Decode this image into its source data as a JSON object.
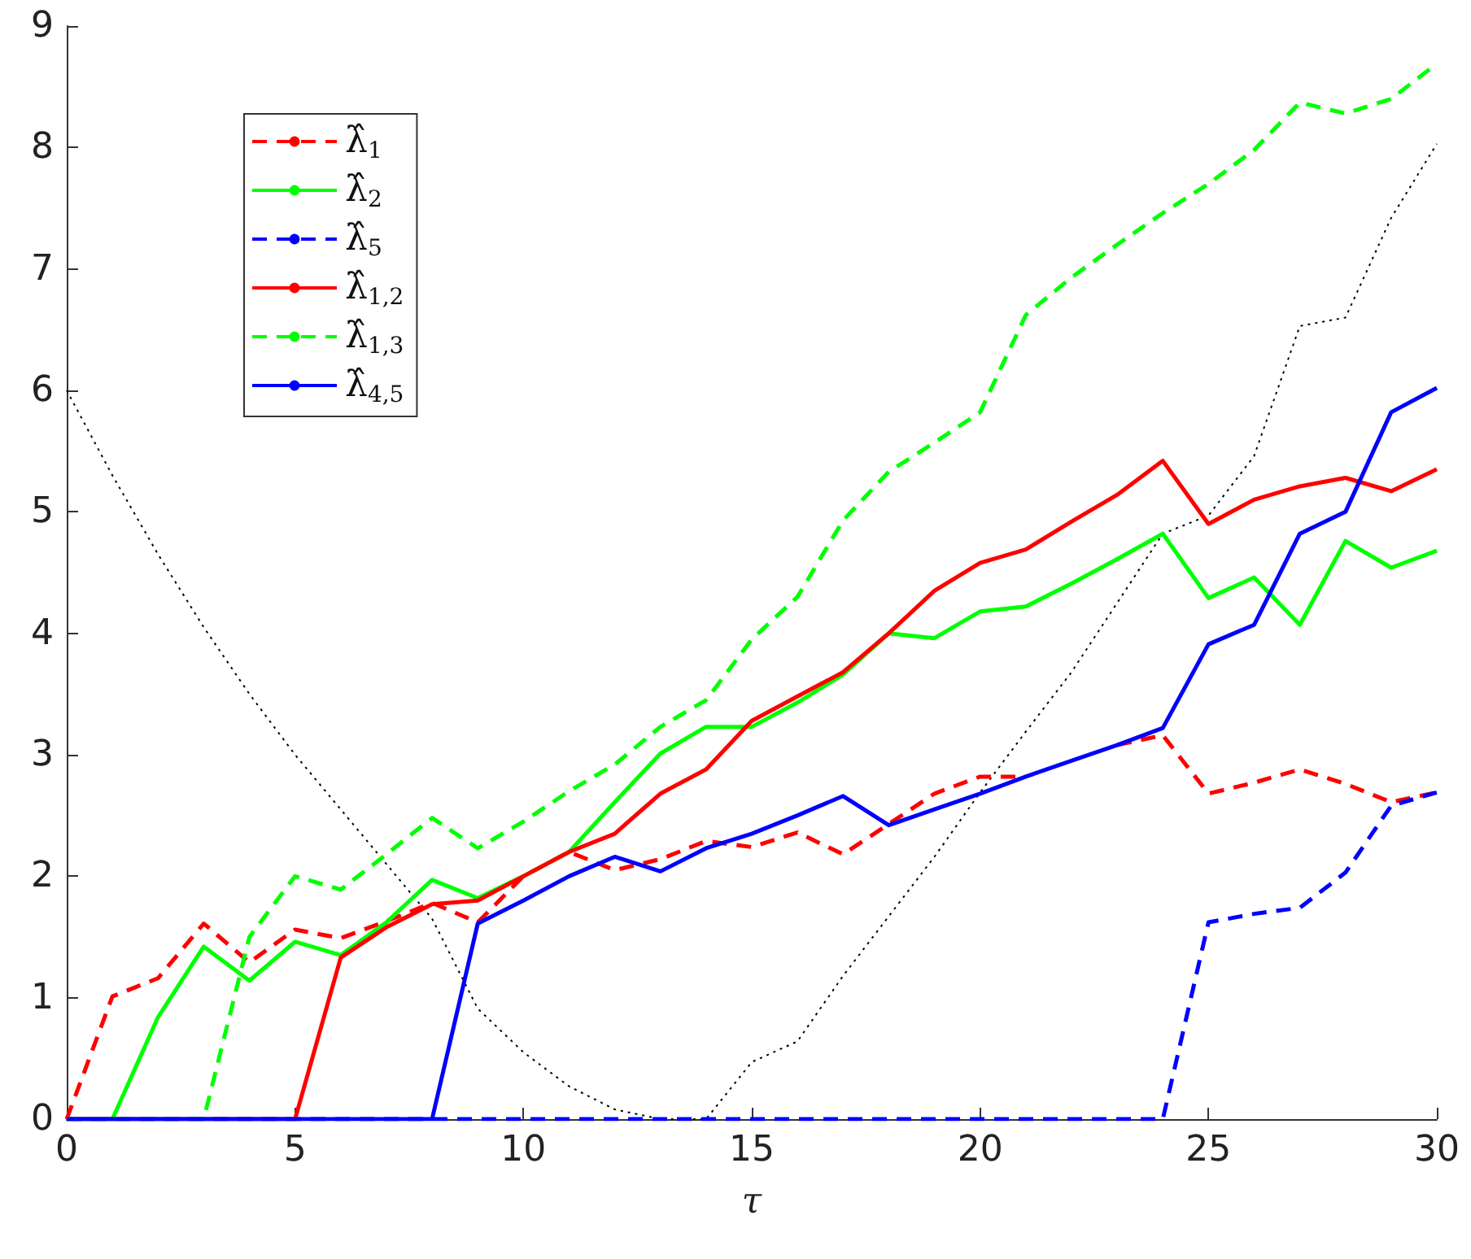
{
  "chart_data": {
    "type": "line",
    "xlabel": "τ",
    "xlim": [
      0,
      30
    ],
    "xticks": [
      0,
      5,
      10,
      15,
      20,
      25,
      30
    ],
    "ylim": [
      0,
      9
    ],
    "yticks": [
      0,
      1,
      2,
      3,
      4,
      5,
      6,
      7,
      8,
      9
    ],
    "grid": false,
    "legend": "top left",
    "marker": "none",
    "x": [
      0,
      1,
      2,
      3,
      4,
      5,
      6,
      7,
      8,
      9,
      10,
      11,
      12,
      13,
      14,
      15,
      16,
      17,
      18,
      19,
      20,
      21,
      22,
      23,
      24,
      25,
      26,
      27,
      28,
      29,
      30
    ],
    "series": [
      {
        "name": "λ̂$_{1}$",
        "color": "#ff0000",
        "line_style": "dashed",
        "values": [
          0,
          1.01,
          1.16,
          1.61,
          1.29,
          1.56,
          1.49,
          1.63,
          1.78,
          1.62,
          2.0,
          2.2,
          2.05,
          2.14,
          2.29,
          2.24,
          2.36,
          2.18,
          2.43,
          2.68,
          2.82,
          2.82,
          null,
          3.08,
          3.16,
          2.68,
          2.77,
          2.88,
          2.76,
          2.61,
          2.69
        ]
      },
      {
        "name": "λ̂$_{2}$",
        "color": "#00ff00",
        "line_style": "solid",
        "values": [
          0,
          0,
          0.84,
          1.42,
          1.14,
          1.46,
          1.35,
          1.62,
          1.97,
          1.82,
          2.0,
          2.2,
          2.61,
          3.01,
          3.23,
          3.23,
          3.43,
          3.66,
          4.0,
          3.96,
          4.18,
          4.22,
          4.41,
          4.61,
          4.82,
          4.29,
          4.46,
          4.07,
          4.76,
          4.54,
          4.68
        ]
      },
      {
        "name": "λ̂$_{5}$",
        "color": "#0000ff",
        "line_style": "dashed",
        "values": [
          0,
          0,
          0,
          0,
          0,
          0,
          0,
          0,
          0,
          0,
          0,
          0,
          0,
          0,
          0,
          0,
          0,
          0,
          0,
          0,
          0,
          0,
          0,
          0,
          0,
          1.62,
          1.69,
          1.74,
          2.03,
          2.58,
          2.69
        ]
      },
      {
        "name": "λ̂$_{1,2}$",
        "color": "#ff0000",
        "line_style": "solid",
        "values": [
          0,
          0,
          0,
          0,
          0,
          0,
          1.33,
          1.58,
          1.77,
          1.8,
          2.0,
          2.2,
          2.35,
          2.68,
          2.88,
          3.28,
          3.48,
          3.68,
          4.0,
          4.35,
          4.58,
          4.69,
          4.92,
          5.14,
          5.42,
          4.9,
          5.1,
          5.21,
          5.28,
          5.17,
          5.35
        ]
      },
      {
        "name": "λ̂$_{1,3}$",
        "color": "#00ff00",
        "line_style": "dashed",
        "values": [
          0,
          0,
          0,
          0,
          1.5,
          2.0,
          1.89,
          2.18,
          2.48,
          2.23,
          2.45,
          2.7,
          2.92,
          3.23,
          3.45,
          3.95,
          4.3,
          4.93,
          5.33,
          5.57,
          5.82,
          6.62,
          6.93,
          7.2,
          7.46,
          7.7,
          7.98,
          8.37,
          8.28,
          8.4,
          8.69
        ]
      },
      {
        "name": "λ̂$_{4,5}$",
        "color": "#0000ff",
        "line_style": "solid",
        "values": [
          0,
          0,
          0,
          0,
          0,
          0,
          0,
          0,
          0,
          1.61,
          1.8,
          2.0,
          2.16,
          2.04,
          2.23,
          2.35,
          2.5,
          2.66,
          2.42,
          2.55,
          2.68,
          2.82,
          2.95,
          3.08,
          3.22,
          3.91,
          4.07,
          4.82,
          5.0,
          5.82,
          6.02
        ]
      },
      {
        "color": "#000000",
        "line_style": "dotted",
        "values": [
          6.0,
          5.3,
          4.65,
          4.05,
          3.5,
          3.0,
          2.55,
          2.1,
          1.65,
          0.91,
          0.55,
          0.27,
          0.08,
          0,
          0,
          0.47,
          0.64,
          1.18,
          1.67,
          2.16,
          2.69,
          3.19,
          3.68,
          4.25,
          4.82,
          4.97,
          5.46,
          6.53,
          6.6,
          7.42,
          8.03
        ]
      }
    ]
  }
}
